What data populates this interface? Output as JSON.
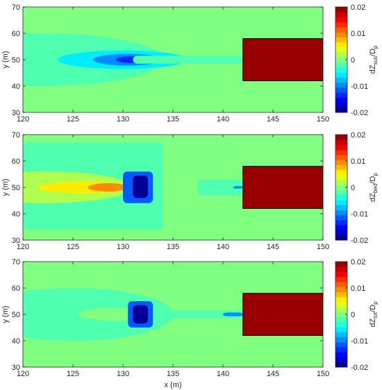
{
  "chart_data": [
    {
      "type": "heatmap",
      "panel": "suspended",
      "xlabel": "",
      "ylabel": "y (m)",
      "xlim": [
        120,
        150
      ],
      "ylim": [
        30,
        70
      ],
      "xticks": [
        "120",
        "125",
        "130",
        "135",
        "140",
        "145",
        "150"
      ],
      "yticks": [
        "30",
        "40",
        "50",
        "60",
        "70"
      ],
      "colorbar": {
        "label_main": "dZ",
        "label_sub": "sus",
        "label_den": "/D",
        "label_den_sub": "p",
        "clim": [
          -0.02,
          0.02
        ],
        "ticks": [
          "0.02",
          "0.01",
          "0",
          "-0.01",
          "-0.02"
        ]
      },
      "structure": {
        "x0": 142,
        "x1": 150,
        "y0": 42,
        "y1": 58,
        "value": 0.02
      },
      "features": [
        {
          "kind": "ellipse",
          "cx": 122,
          "cy": 50,
          "rx": 12,
          "ry": 10,
          "value": -0.0015
        },
        {
          "kind": "ellipse",
          "cx": 130,
          "cy": 50,
          "rx": 6.5,
          "ry": 3.5,
          "value": -0.005
        },
        {
          "kind": "ellipse",
          "cx": 130.5,
          "cy": 50,
          "rx": 3.5,
          "ry": 2.2,
          "value": -0.009
        },
        {
          "kind": "ellipse",
          "cx": 130.8,
          "cy": 50,
          "rx": 1.5,
          "ry": 1.3,
          "value": -0.013
        },
        {
          "kind": "rect",
          "x0": 131,
          "x1": 142,
          "y0": 48.5,
          "y1": 51.5,
          "value": -0.002
        }
      ]
    },
    {
      "type": "heatmap",
      "panel": "bed",
      "xlabel": "",
      "ylabel": "y (m)",
      "xlim": [
        120,
        150
      ],
      "ylim": [
        30,
        70
      ],
      "xticks": [
        "120",
        "125",
        "130",
        "135",
        "140",
        "145",
        "150"
      ],
      "yticks": [
        "30",
        "40",
        "50",
        "60",
        "70"
      ],
      "colorbar": {
        "label_main": "dZ",
        "label_sub": "bed",
        "label_den": "/D",
        "label_den_sub": "p",
        "clim": [
          -0.02,
          0.02
        ],
        "ticks": [
          "0.02",
          "0.01",
          "0",
          "-0.01",
          "-0.02"
        ]
      },
      "structure": {
        "x0": 142,
        "x1": 150,
        "y0": 42,
        "y1": 58,
        "value": 0.02
      },
      "features": [
        {
          "kind": "rect",
          "x0": 120,
          "x1": 134,
          "y0": 34,
          "y1": 67,
          "value": -0.0015
        },
        {
          "kind": "ellipse",
          "cx": 122,
          "cy": 50,
          "rx": 9,
          "ry": 6,
          "value": 0.0025
        },
        {
          "kind": "ellipse",
          "cx": 126,
          "cy": 50,
          "rx": 4.5,
          "ry": 2.2,
          "value": 0.006
        },
        {
          "kind": "ellipse",
          "cx": 128.5,
          "cy": 50,
          "rx": 2,
          "ry": 1.6,
          "value": 0.01
        },
        {
          "kind": "rect",
          "x0": 130,
          "x1": 133,
          "y0": 44,
          "y1": 56,
          "value": -0.012
        },
        {
          "kind": "rect",
          "x0": 131,
          "x1": 132.5,
          "y0": 46,
          "y1": 54.5,
          "value": -0.019
        },
        {
          "kind": "rect",
          "x0": 137.5,
          "x1": 142,
          "y0": 47,
          "y1": 53,
          "value": -0.0015
        },
        {
          "kind": "rect",
          "x0": 141,
          "x1": 142,
          "y0": 49.5,
          "y1": 50.5,
          "value": -0.01
        }
      ]
    },
    {
      "type": "heatmap",
      "panel": "total",
      "xlabel": "x (m)",
      "ylabel": "y (m)",
      "xlim": [
        120,
        150
      ],
      "ylim": [
        30,
        70
      ],
      "xticks": [
        "120",
        "125",
        "130",
        "135",
        "140",
        "145",
        "150"
      ],
      "yticks": [
        "30",
        "40",
        "50",
        "60",
        "70"
      ],
      "colorbar": {
        "label_main": "dZ",
        "label_sub": "tot",
        "label_den": "/D",
        "label_den_sub": "p",
        "clim": [
          -0.02,
          0.02
        ],
        "ticks": [
          "0.02",
          "0.01",
          "0",
          "-0.01",
          "-0.02"
        ]
      },
      "structure": {
        "x0": 142,
        "x1": 150,
        "y0": 42,
        "y1": 58,
        "value": 0.02
      },
      "features": [
        {
          "kind": "ellipse",
          "cx": 125,
          "cy": 50,
          "rx": 10,
          "ry": 10,
          "value": -0.0015
        },
        {
          "kind": "ellipse",
          "cx": 129,
          "cy": 50,
          "rx": 3.5,
          "ry": 2.5,
          "value": 0.0005
        },
        {
          "kind": "rect",
          "x0": 130.5,
          "x1": 133,
          "y0": 45,
          "y1": 55,
          "value": -0.012
        },
        {
          "kind": "rect",
          "x0": 131,
          "x1": 132.5,
          "y0": 46.5,
          "y1": 53.5,
          "value": -0.019
        },
        {
          "kind": "rect",
          "x0": 133,
          "x1": 142,
          "y0": 48.5,
          "y1": 51.5,
          "value": -0.0015
        },
        {
          "kind": "rect",
          "x0": 140,
          "x1": 142,
          "y0": 49.3,
          "y1": 50.7,
          "value": -0.01
        }
      ]
    }
  ]
}
